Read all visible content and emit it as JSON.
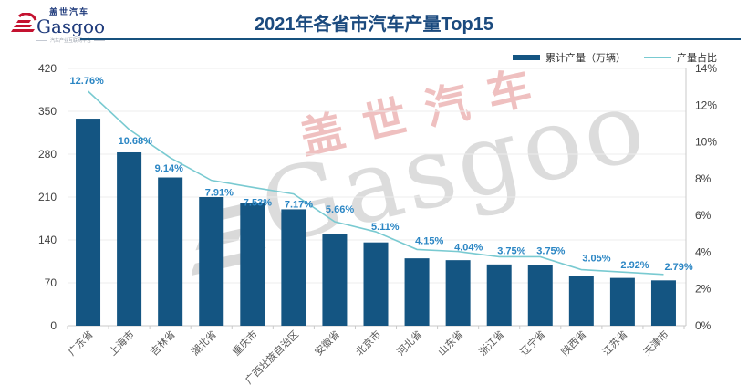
{
  "header": {
    "logo": {
      "brand_cn": "盖世汽车",
      "brand_en": "Gasgoo",
      "tagline": "汽车产业互联网平台"
    },
    "title": "2021年各省市汽车产量Top15"
  },
  "legend": [
    {
      "label": "累计产量（万辆）",
      "swatch": "bar",
      "color": "#145582"
    },
    {
      "label": "产量占比",
      "swatch": "line",
      "color": "#79CAD1"
    }
  ],
  "watermark": {
    "text_cn": "盖世汽车",
    "text_en": "Gasgoo"
  },
  "colors": {
    "bar": "#145582",
    "line": "#79CAD1",
    "data_label": "#2B86C4",
    "title": "#1B4A7E",
    "axis_text": "#404040",
    "category_text": "#595959",
    "gridline": "#ECECEC",
    "axis_line": "#C9C9C9",
    "logo_red": "#C41230",
    "logo_blue": "#1E3A7B"
  },
  "chart_data": {
    "type": "bar+line",
    "title": "2021年各省市汽车产量Top15",
    "categories": [
      "广东省",
      "上海市",
      "吉林省",
      "湖北省",
      "重庆市",
      "广西壮族自治区",
      "安徽省",
      "北京市",
      "河北省",
      "山东省",
      "浙江省",
      "辽宁省",
      "陕西省",
      "江苏省",
      "天津市"
    ],
    "series": [
      {
        "name": "累计产量（万辆）",
        "type": "bar",
        "axis": "left",
        "color": "#145582",
        "values": [
          338,
          283,
          242,
          210,
          200,
          190,
          150,
          136,
          110,
          107,
          100,
          99,
          81,
          78,
          74
        ]
      },
      {
        "name": "产量占比",
        "type": "line",
        "axis": "right",
        "color": "#79CAD1",
        "label_color": "#2B86C4",
        "values": [
          12.76,
          10.68,
          9.14,
          7.91,
          7.53,
          7.17,
          5.66,
          5.11,
          4.15,
          4.04,
          3.75,
          3.75,
          3.05,
          2.92,
          2.79
        ],
        "labels": [
          "12.76%",
          "10.68%",
          "9.14%",
          "7.91%",
          "7.53%",
          "7.17%",
          "5.66%",
          "5.11%",
          "4.15%",
          "4.04%",
          "3.75%",
          "3.75%",
          "3.05%",
          "2.92%",
          "2.79%"
        ]
      }
    ],
    "left_axis": {
      "min": 0,
      "max": 420,
      "step": 70,
      "ticks": [
        "0",
        "70",
        "140",
        "210",
        "280",
        "350",
        "420"
      ]
    },
    "right_axis": {
      "min": 0,
      "max": 14,
      "step": 2,
      "ticks": [
        "0%",
        "2%",
        "4%",
        "6%",
        "8%",
        "10%",
        "12%",
        "14%"
      ]
    },
    "grid": true,
    "legend_position": "top-right"
  }
}
